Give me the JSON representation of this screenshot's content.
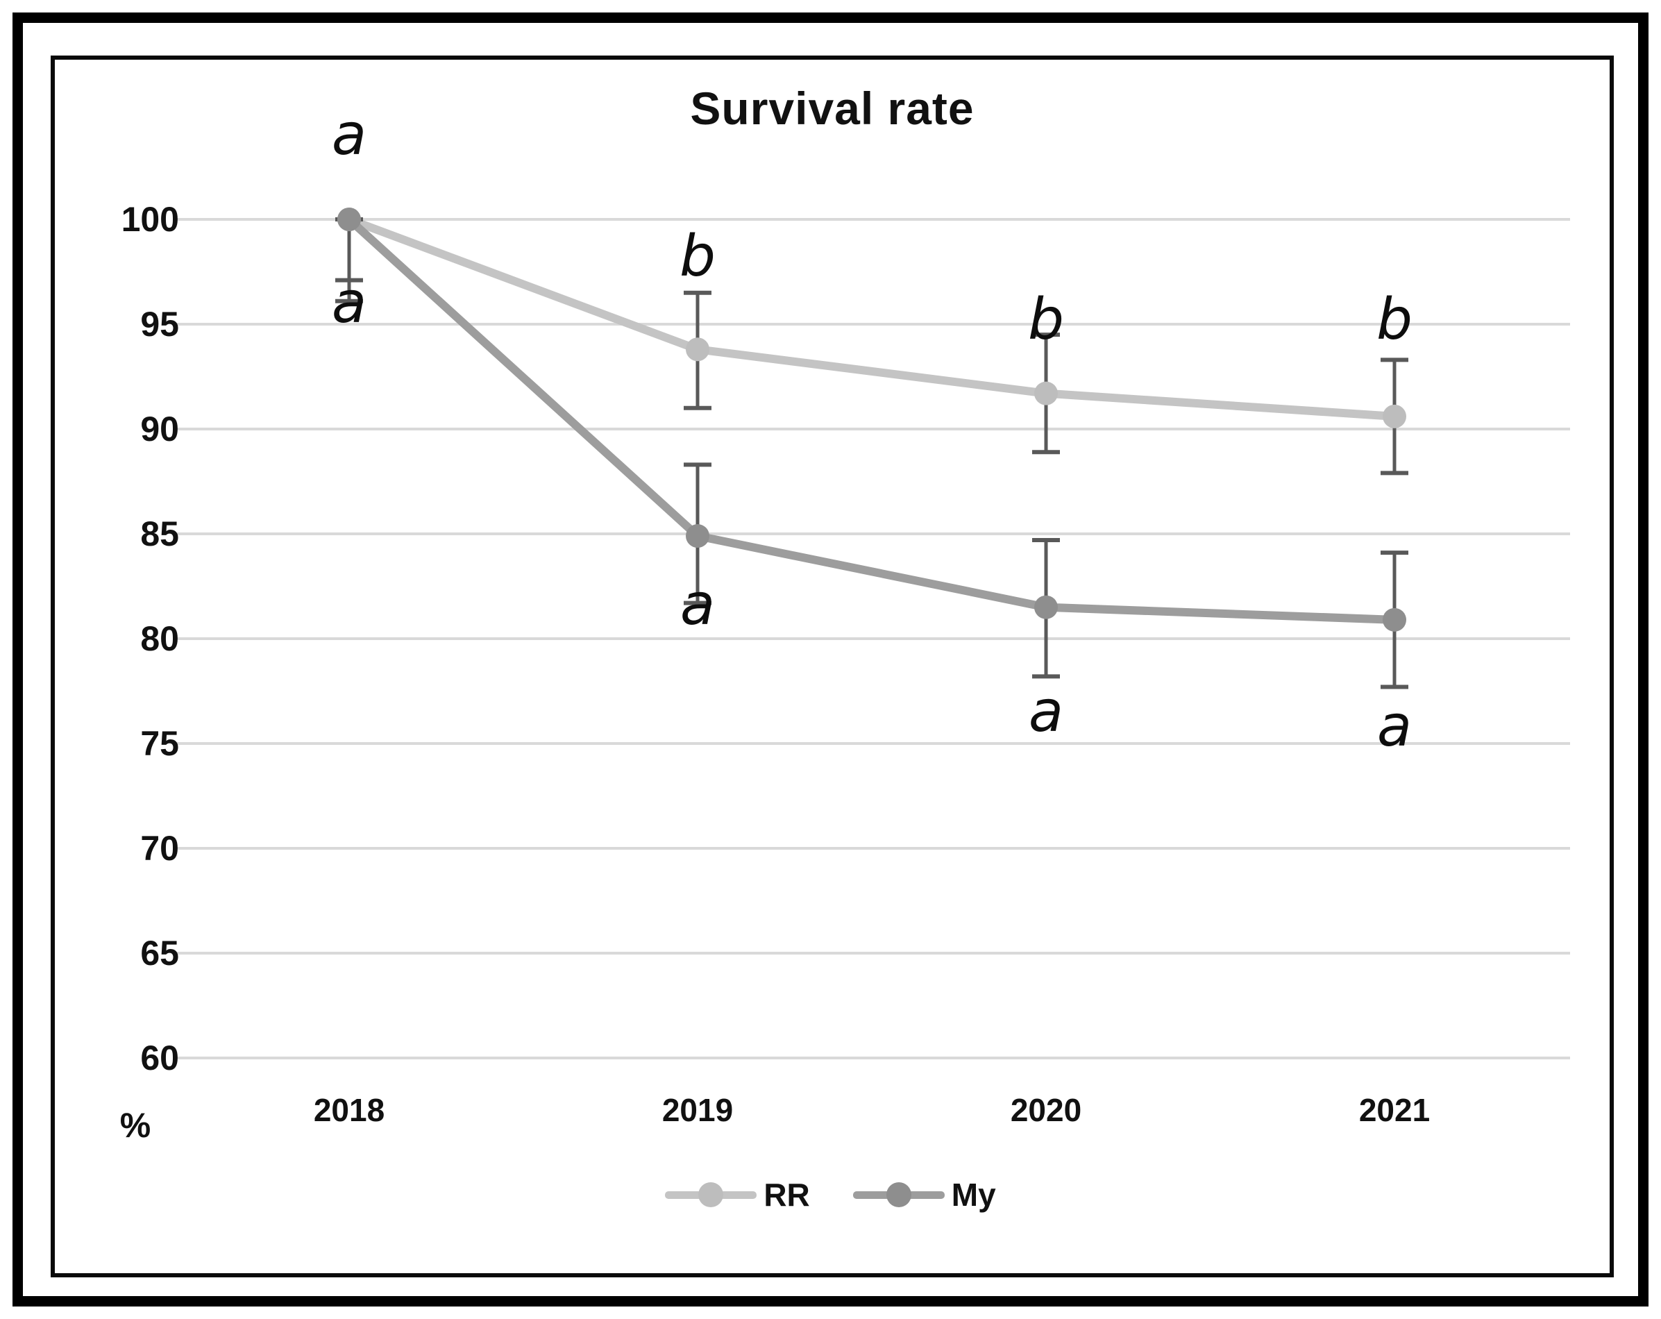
{
  "frame": {
    "outer_border_color": "#000000",
    "inner_border_color": "#0a0a0a",
    "background": "#ffffff"
  },
  "chart_data": {
    "type": "line",
    "title": "Survival rate",
    "x_categories": [
      "2018",
      "2019",
      "2020",
      "2021"
    ],
    "y_axis": {
      "unit_label": "%",
      "ticks": [
        100,
        95,
        90,
        85,
        80,
        75,
        70,
        65,
        60
      ],
      "min": 60,
      "max": 100,
      "gridlines": true,
      "gridline_color": "#d9d9d9"
    },
    "series": [
      {
        "name": "RR",
        "line_color": "#c4c4c4",
        "marker_color": "#bdbdbd",
        "values": [
          100,
          93.8,
          91.7,
          90.6
        ],
        "error_low": [
          97.1,
          91.0,
          88.9,
          87.9
        ],
        "error_high": [
          100,
          96.5,
          94.5,
          93.3
        ]
      },
      {
        "name": "My",
        "line_color": "#9d9d9d",
        "marker_color": "#8e8e8e",
        "values": [
          100,
          84.9,
          81.5,
          80.9
        ],
        "error_low": [
          96.1,
          81.7,
          78.2,
          77.7
        ],
        "error_high": [
          100,
          88.3,
          84.7,
          84.1
        ]
      }
    ],
    "error_bar_color": "#595959",
    "annotations": [
      {
        "text": "a",
        "x_index": 0,
        "y_value": 104.0
      },
      {
        "text": "a",
        "x_index": 0,
        "y_value": 96.0
      },
      {
        "text": "b",
        "x_index": 1,
        "y_value": 98.2
      },
      {
        "text": "a",
        "x_index": 1,
        "y_value": 81.6
      },
      {
        "text": "b",
        "x_index": 2,
        "y_value": 95.2
      },
      {
        "text": "a",
        "x_index": 2,
        "y_value": 76.5
      },
      {
        "text": "b",
        "x_index": 3,
        "y_value": 95.2
      },
      {
        "text": "a",
        "x_index": 3,
        "y_value": 75.8
      }
    ],
    "legend_position": "bottom"
  }
}
